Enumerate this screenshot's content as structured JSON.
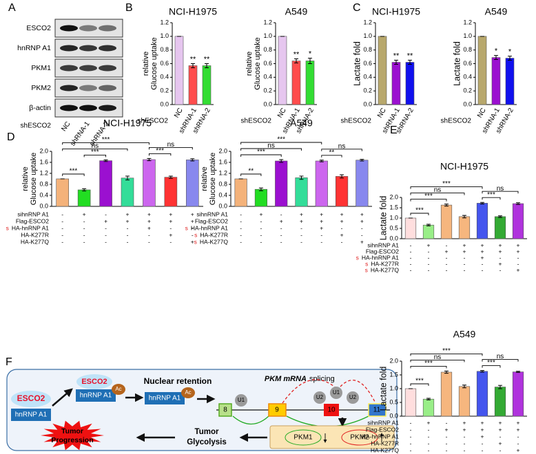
{
  "panel_labels": [
    "A",
    "B",
    "C",
    "D",
    "E",
    "F"
  ],
  "blot": {
    "rows": [
      "ESCO2",
      "hnRNP A1",
      "PKM1",
      "PKM2",
      "β-actin"
    ],
    "lanes": [
      "NC",
      "shRNA-1",
      "shRNA-2"
    ],
    "group": "shESCO2"
  },
  "chart_data": [
    {
      "type": "bar",
      "title": "NCI-H1975",
      "ylabel": [
        "relative",
        "Glucose uptake"
      ],
      "group_label": "shESCO2",
      "categories": [
        "NC",
        "shRNA-1",
        "shRNA-2"
      ],
      "values": [
        1.0,
        0.57,
        0.57
      ],
      "errors": [
        0,
        0.03,
        0.03
      ],
      "significance": [
        null,
        "**",
        "**"
      ],
      "colors": [
        "#e6c6ef",
        "#ff4d4d",
        "#33dd33"
      ],
      "ylim": [
        0,
        1.2
      ],
      "yticks": [
        {
          "value": 0,
          "label": "0.0"
        },
        0.2,
        0.4,
        0.6,
        0.8,
        {
          "value": 1,
          "label": "1.0"
        },
        1.2
      ]
    },
    {
      "type": "bar",
      "title": "A549",
      "ylabel": [
        "relative",
        "Glucose uptake"
      ],
      "group_label": "shESCO2",
      "categories": [
        "NC",
        "shRNA-1",
        "shRNA-2"
      ],
      "values": [
        1.0,
        0.64,
        0.64
      ],
      "errors": [
        0,
        0.03,
        0.04
      ],
      "significance": [
        null,
        "**",
        "*"
      ],
      "colors": [
        "#e6c6ef",
        "#ff4d4d",
        "#33dd33"
      ],
      "ylim": [
        0,
        1.2
      ],
      "yticks": [
        {
          "value": 0,
          "label": "0.0"
        },
        0.2,
        0.4,
        0.6,
        0.8,
        {
          "value": 1,
          "label": "1.0"
        },
        1.2
      ]
    },
    {
      "type": "bar",
      "title": "NCI-H1975",
      "ylabel": [
        "Lactate fold"
      ],
      "group_label": "shESCO2",
      "categories": [
        "NC",
        "shRNA-1",
        "shRNA-2"
      ],
      "values": [
        1.0,
        0.62,
        0.62
      ],
      "errors": [
        0,
        0.03,
        0.03
      ],
      "significance": [
        null,
        "**",
        "**"
      ],
      "colors": [
        "#b8a86c",
        "#9b10d0",
        "#1010ee"
      ],
      "ylim": [
        0,
        1.2
      ],
      "yticks": [
        {
          "value": 0,
          "label": "0.0"
        },
        0.2,
        0.4,
        0.6,
        0.8,
        {
          "value": 1,
          "label": "1.0"
        },
        1.2
      ]
    },
    {
      "type": "bar",
      "title": "A549",
      "ylabel": [
        "Lactate fold"
      ],
      "group_label": "shESCO2",
      "categories": [
        "NC",
        "shRNA-1",
        "shRNA-2"
      ],
      "values": [
        1.0,
        0.69,
        0.68
      ],
      "errors": [
        0,
        0.03,
        0.03
      ],
      "significance": [
        null,
        "*",
        "*"
      ],
      "colors": [
        "#b8a86c",
        "#9b10d0",
        "#1010ee"
      ],
      "ylim": [
        0,
        1.2
      ],
      "yticks": [
        {
          "value": 0,
          "label": "0.0"
        },
        0.2,
        0.4,
        0.6,
        0.8,
        {
          "value": 1,
          "label": "1.0"
        },
        1.2
      ]
    },
    {
      "type": "bar",
      "title": "NCI-H1975",
      "ylabel": [
        "relative",
        "Glucose uptake"
      ],
      "values": [
        1.0,
        0.6,
        1.66,
        1.03,
        1.7,
        1.06,
        1.69
      ],
      "errors": [
        0,
        0.04,
        0.03,
        0.07,
        0.04,
        0.04,
        0.04
      ],
      "colors": [
        "#f4b27a",
        "#22dd22",
        "#9b10d0",
        "#33dd99",
        "#cc66ee",
        "#ff3333",
        "#8888ee"
      ],
      "ylim": [
        0,
        2
      ],
      "yticks": [
        {
          "value": 0,
          "label": "0.0"
        },
        0.4,
        0.8,
        1.2,
        1.6,
        {
          "value": 2,
          "label": "2.0"
        }
      ],
      "conditions": [
        {
          "name": "sihnRNP A1",
          "marks": [
            "-",
            "+",
            "-",
            "+",
            "+",
            "+",
            "+"
          ]
        },
        {
          "name": "Flag-ESCO2",
          "marks": [
            "-",
            "-",
            "+",
            "+",
            "+",
            "+",
            "+"
          ]
        },
        {
          "prefix": "s",
          "name": "HA-hnRNP A1",
          "marks": [
            "-",
            "-",
            "-",
            "-",
            "+",
            "-",
            "-"
          ]
        },
        {
          "name": "HA-K277R",
          "marks": [
            "-",
            "-",
            "-",
            "-",
            "-",
            "+",
            "-"
          ]
        },
        {
          "name": "HA-K277Q",
          "marks": [
            "-",
            "-",
            "-",
            "-",
            "-",
            "-",
            "+"
          ]
        }
      ],
      "comparisons": [
        {
          "bars": [
            0,
            1
          ],
          "label": "***"
        },
        {
          "bars": [
            1,
            2
          ],
          "label": "***"
        },
        {
          "bars": [
            0,
            3
          ],
          "label": "ns"
        },
        {
          "bars": [
            0,
            4
          ],
          "label": "***"
        },
        {
          "bars": [
            4,
            5
          ],
          "label": "***"
        },
        {
          "bars": [
            4,
            6
          ],
          "label": "ns"
        }
      ]
    },
    {
      "type": "bar",
      "title": "A549",
      "ylabel": [
        "relative",
        "Glucose uptake"
      ],
      "values": [
        1.0,
        0.62,
        1.65,
        1.04,
        1.65,
        1.09,
        1.68
      ],
      "errors": [
        0,
        0.05,
        0.05,
        0.06,
        0.03,
        0.06,
        0.03
      ],
      "colors": [
        "#f4b27a",
        "#22dd22",
        "#9b10d0",
        "#33dd99",
        "#cc66ee",
        "#ff3333",
        "#8888ee"
      ],
      "ylim": [
        0,
        2
      ],
      "yticks": [
        {
          "value": 0,
          "label": "0.0"
        },
        0.4,
        0.8,
        1.2,
        1.6,
        {
          "value": 2,
          "label": "2.0"
        }
      ],
      "conditions": [
        {
          "name": "sihnRNP A1",
          "marks": [
            "-",
            "+",
            "-",
            "+",
            "+",
            "+",
            "+"
          ]
        },
        {
          "name": "Flag-ESCO2",
          "marks": [
            "-",
            "-",
            "+",
            "+",
            "+",
            "+",
            "+"
          ]
        },
        {
          "prefix": "s",
          "name": "HA-hnRNP A1",
          "marks": [
            "-",
            "-",
            "-",
            "-",
            "+",
            "-",
            "-"
          ]
        },
        {
          "prefix": "s",
          "name": "HA-K277R",
          "marks": [
            "-",
            "-",
            "-",
            "-",
            "-",
            "+",
            "-"
          ]
        },
        {
          "prefix": "s",
          "name": "HA-K277Q",
          "marks": [
            "-",
            "-",
            "-",
            "-",
            "-",
            "-",
            "+"
          ]
        }
      ],
      "comparisons": [
        {
          "bars": [
            0,
            1
          ],
          "label": "**"
        },
        {
          "bars": [
            0,
            2
          ],
          "label": "***"
        },
        {
          "bars": [
            0,
            3
          ],
          "label": "ns"
        },
        {
          "bars": [
            0,
            4
          ],
          "label": "***"
        },
        {
          "bars": [
            4,
            5
          ],
          "label": "**"
        },
        {
          "bars": [
            4,
            6
          ],
          "label": "ns"
        }
      ]
    },
    {
      "type": "bar",
      "title": "NCI-H1975",
      "ylabel": [
        "Lactate fold"
      ],
      "values": [
        1.0,
        0.66,
        1.63,
        1.07,
        1.72,
        1.07,
        1.7
      ],
      "errors": [
        0,
        0.04,
        0.05,
        0.06,
        0.04,
        0.04,
        0.04
      ],
      "colors": [
        "#ffdede",
        "#99ee88",
        "#f6b67e",
        "#f6b67e",
        "#4455ee",
        "#33aa33",
        "#b033dd"
      ],
      "ylim": [
        0,
        2
      ],
      "yticks": [
        {
          "value": 0,
          "label": "0.0"
        },
        0.5,
        {
          "value": 1,
          "label": "1.0"
        },
        1.5,
        {
          "value": 2,
          "label": "2.0"
        }
      ],
      "conditions": [
        {
          "name": "sihnRNP A1",
          "marks": [
            "-",
            "+",
            "-",
            "+",
            "+",
            "+",
            "+"
          ]
        },
        {
          "name": "Flag-ESCO2",
          "marks": [
            "-",
            "-",
            "+",
            "+",
            "+",
            "+",
            "+"
          ]
        },
        {
          "prefix": "s",
          "name": "HA-hnRNP A1",
          "marks": [
            "-",
            "-",
            "-",
            "-",
            "+",
            "-",
            "-"
          ]
        },
        {
          "prefix": "s",
          "name": "HA-K277R",
          "marks": [
            "-",
            "-",
            "-",
            "-",
            "-",
            "+",
            "-"
          ]
        },
        {
          "prefix": "s",
          "name": "HA-K277Q",
          "marks": [
            "-",
            "-",
            "-",
            "-",
            "-",
            "-",
            "+"
          ]
        }
      ],
      "comparisons": [
        {
          "bars": [
            0,
            1
          ],
          "label": "***"
        },
        {
          "bars": [
            0,
            2
          ],
          "label": "***"
        },
        {
          "bars": [
            0,
            3
          ],
          "label": "ns"
        },
        {
          "bars": [
            0,
            4
          ],
          "label": "***"
        },
        {
          "bars": [
            4,
            5
          ],
          "label": "***"
        },
        {
          "bars": [
            4,
            6
          ],
          "label": "ns"
        }
      ]
    },
    {
      "type": "bar",
      "title": "A549",
      "ylabel": [
        "Lactate fold"
      ],
      "values": [
        1.0,
        0.62,
        1.6,
        1.08,
        1.63,
        1.06,
        1.61
      ],
      "errors": [
        0,
        0.03,
        0.04,
        0.05,
        0.03,
        0.06,
        0.02
      ],
      "colors": [
        "#ffdede",
        "#99ee88",
        "#f6b67e",
        "#f6b67e",
        "#4455ee",
        "#33aa33",
        "#b033dd"
      ],
      "ylim": [
        0,
        2
      ],
      "yticks": [
        {
          "value": 0,
          "label": "0.0"
        },
        0.5,
        {
          "value": 1,
          "label": "1.0"
        },
        1.5,
        {
          "value": 2,
          "label": "2.0"
        }
      ],
      "conditions": [
        {
          "name": "sihnRNP A1",
          "marks": [
            "-",
            "+",
            "-",
            "+",
            "+",
            "+",
            "+"
          ]
        },
        {
          "name": "Flag-ESCO2",
          "marks": [
            "-",
            "-",
            "+",
            "+",
            "+",
            "+",
            "+"
          ]
        },
        {
          "name": "HA-hnRNP A1",
          "marks": [
            "-",
            "-",
            "-",
            "-",
            "+",
            "-",
            "-"
          ]
        },
        {
          "name": "HA-K277R",
          "marks": [
            "-",
            "-",
            "-",
            "-",
            "-",
            "+",
            "-"
          ]
        },
        {
          "name": "HA-K277Q",
          "marks": [
            "-",
            "-",
            "-",
            "-",
            "-",
            "-",
            "+"
          ]
        }
      ],
      "comparisons": [
        {
          "bars": [
            0,
            1
          ],
          "label": "***"
        },
        {
          "bars": [
            0,
            2
          ],
          "label": "***"
        },
        {
          "bars": [
            0,
            3
          ],
          "label": "ns"
        },
        {
          "bars": [
            0,
            4
          ],
          "label": "***"
        },
        {
          "bars": [
            4,
            5
          ],
          "label": "***"
        },
        {
          "bars": [
            4,
            6
          ],
          "label": "ns"
        }
      ]
    }
  ],
  "diagram": {
    "esco2_free": "ESCO2",
    "hnrnp_free": "hnRNP A1",
    "esco2_bound": "ESCO2",
    "hnrnp_bound": "hnRNP A1",
    "ac_1": "Ac",
    "nuclear_retention": "Nuclear retention",
    "hnrnp_retained": "hnRNP A1",
    "ac_2": "Ac",
    "splicing_gene": "PKM mRNA",
    "splicing_word": "splicing",
    "snrnps": [
      "U1",
      "U2",
      "U1",
      "U2"
    ],
    "exons": [
      "8",
      "9",
      "10",
      "11"
    ],
    "pkm1": "PKM1",
    "pkm2": "PKM2",
    "tumor_glycolysis": [
      "Tumor",
      "Glycolysis"
    ],
    "tumor_progression": [
      "Tumor",
      "Progression"
    ]
  }
}
